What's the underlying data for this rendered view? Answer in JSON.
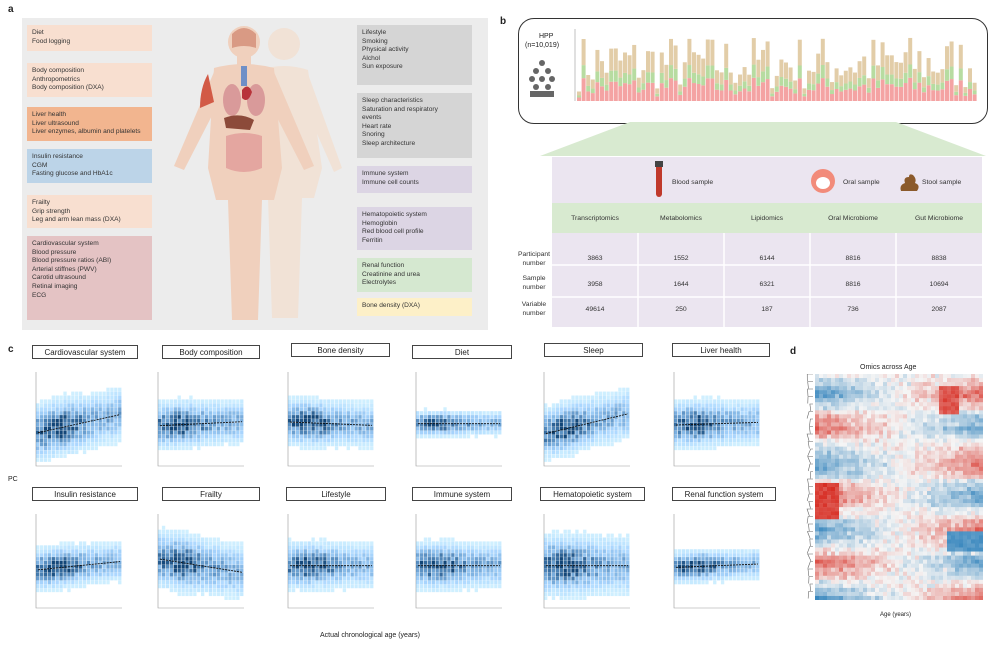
{
  "panel_labels": {
    "a": "a",
    "b": "b",
    "c": "c",
    "d": "d"
  },
  "panel_a": {
    "left": [
      {
        "id": "diet",
        "lines": [
          "Diet",
          "Food logging"
        ]
      },
      {
        "id": "body",
        "lines": [
          "Body composition",
          "Anthropometrics",
          "Body composition (DXA)"
        ]
      },
      {
        "id": "liver",
        "lines": [
          "Liver health",
          "Liver ultrasound",
          "Liver enzymes, albumin and platelets"
        ]
      },
      {
        "id": "insul",
        "lines": [
          "Insulin resistance",
          "CGM",
          "Fasting glucose and HbA1c"
        ]
      },
      {
        "id": "frail",
        "lines": [
          "Frailty",
          "Grip strength",
          "Leg and arm lean mass (DXA)"
        ]
      },
      {
        "id": "cardio",
        "lines": [
          "Cardiovascular system",
          "Blood pressure",
          "Blood pressure ratios (ABI)",
          "Arterial stiffnes (PWV)",
          "Carotid ultrasound",
          "Retinal imaging",
          "ECG"
        ]
      }
    ],
    "right": [
      {
        "id": "life",
        "lines": [
          "Lifestyle",
          "Smoking",
          "Physical activity",
          "Alchol",
          "Sun exposure"
        ]
      },
      {
        "id": "sleep",
        "lines": [
          "Sleep characteristics",
          "Saturation and respiratory",
          "events",
          "Heart rate",
          "Snoring",
          "Sleep architecture"
        ]
      },
      {
        "id": "immune",
        "lines": [
          "Immune system",
          "Immune cell counts"
        ]
      },
      {
        "id": "hemato",
        "lines": [
          "Hematopoietic system",
          "Hemoglobin",
          "Red blood cell profile",
          "Ferritin"
        ]
      },
      {
        "id": "renal",
        "lines": [
          "Renal function",
          "Creatinine and urea",
          "Electrolytes"
        ]
      },
      {
        "id": "bone",
        "lines": [
          "Bone density (DXA)"
        ]
      }
    ]
  },
  "panel_b": {
    "hpp_title": "HPP",
    "hpp_n": "(n=10,019)",
    "groups": {
      "blood": "Blood sample",
      "oral": "Oral sample",
      "stool": "Stool sample"
    },
    "columns": [
      "Transcriptomics",
      "Metabolomics",
      "Lipidomics",
      "Oral Microbiome",
      "Gut Microbiome"
    ],
    "rows": [
      {
        "label": [
          "Participant",
          "number"
        ],
        "values": [
          "3863",
          "1552",
          "6144",
          "8816",
          "8838"
        ]
      },
      {
        "label": [
          "Sample",
          "number"
        ],
        "values": [
          "3958",
          "1644",
          "6321",
          "8816",
          "10694"
        ]
      },
      {
        "label": [
          "Variable",
          "number"
        ],
        "values": [
          "49614",
          "250",
          "187",
          "736",
          "2087"
        ]
      }
    ],
    "colors": {
      "table_bg": "#ebe5f0",
      "header_green": "#d8ead0",
      "stack": [
        "#f4a3a3",
        "#b7dca1",
        "#e2cda8",
        "#f5d78f"
      ]
    }
  },
  "panel_c": {
    "y_label": "PC",
    "x_label": "Actual chronological age (years)",
    "plots": [
      {
        "title": "Cardiovascular system",
        "slope": 0.55,
        "spread": 0.9
      },
      {
        "title": "Body composition",
        "slope": 0.12,
        "spread": 0.7
      },
      {
        "title": "Bone density",
        "slope": -0.1,
        "spread": 0.7
      },
      {
        "title": "Diet",
        "slope": 0.0,
        "spread": 0.25
      },
      {
        "title": "Sleep",
        "slope": 0.6,
        "spread": 0.8
      },
      {
        "title": "Liver health",
        "slope": 0.08,
        "spread": 0.7
      },
      {
        "title": "Insulin resistance",
        "slope": 0.25,
        "spread": 0.6
      },
      {
        "title": "Frailty",
        "slope": -0.4,
        "spread": 0.9
      },
      {
        "title": "Lifestyle",
        "slope": 0.0,
        "spread": 0.7
      },
      {
        "title": "Immune system",
        "slope": 0.0,
        "spread": 0.7
      },
      {
        "title": "Hematopoietic system",
        "slope": 0.0,
        "spread": 1.0
      },
      {
        "title": "Renal function system",
        "slope": 0.1,
        "spread": 0.4
      }
    ]
  },
  "panel_d": {
    "title": "Omics across Age",
    "x_label": "Age (years)",
    "colors": {
      "pos": "#d73027",
      "neg": "#2c7bb6",
      "mid": "#f5f5f5"
    }
  }
}
